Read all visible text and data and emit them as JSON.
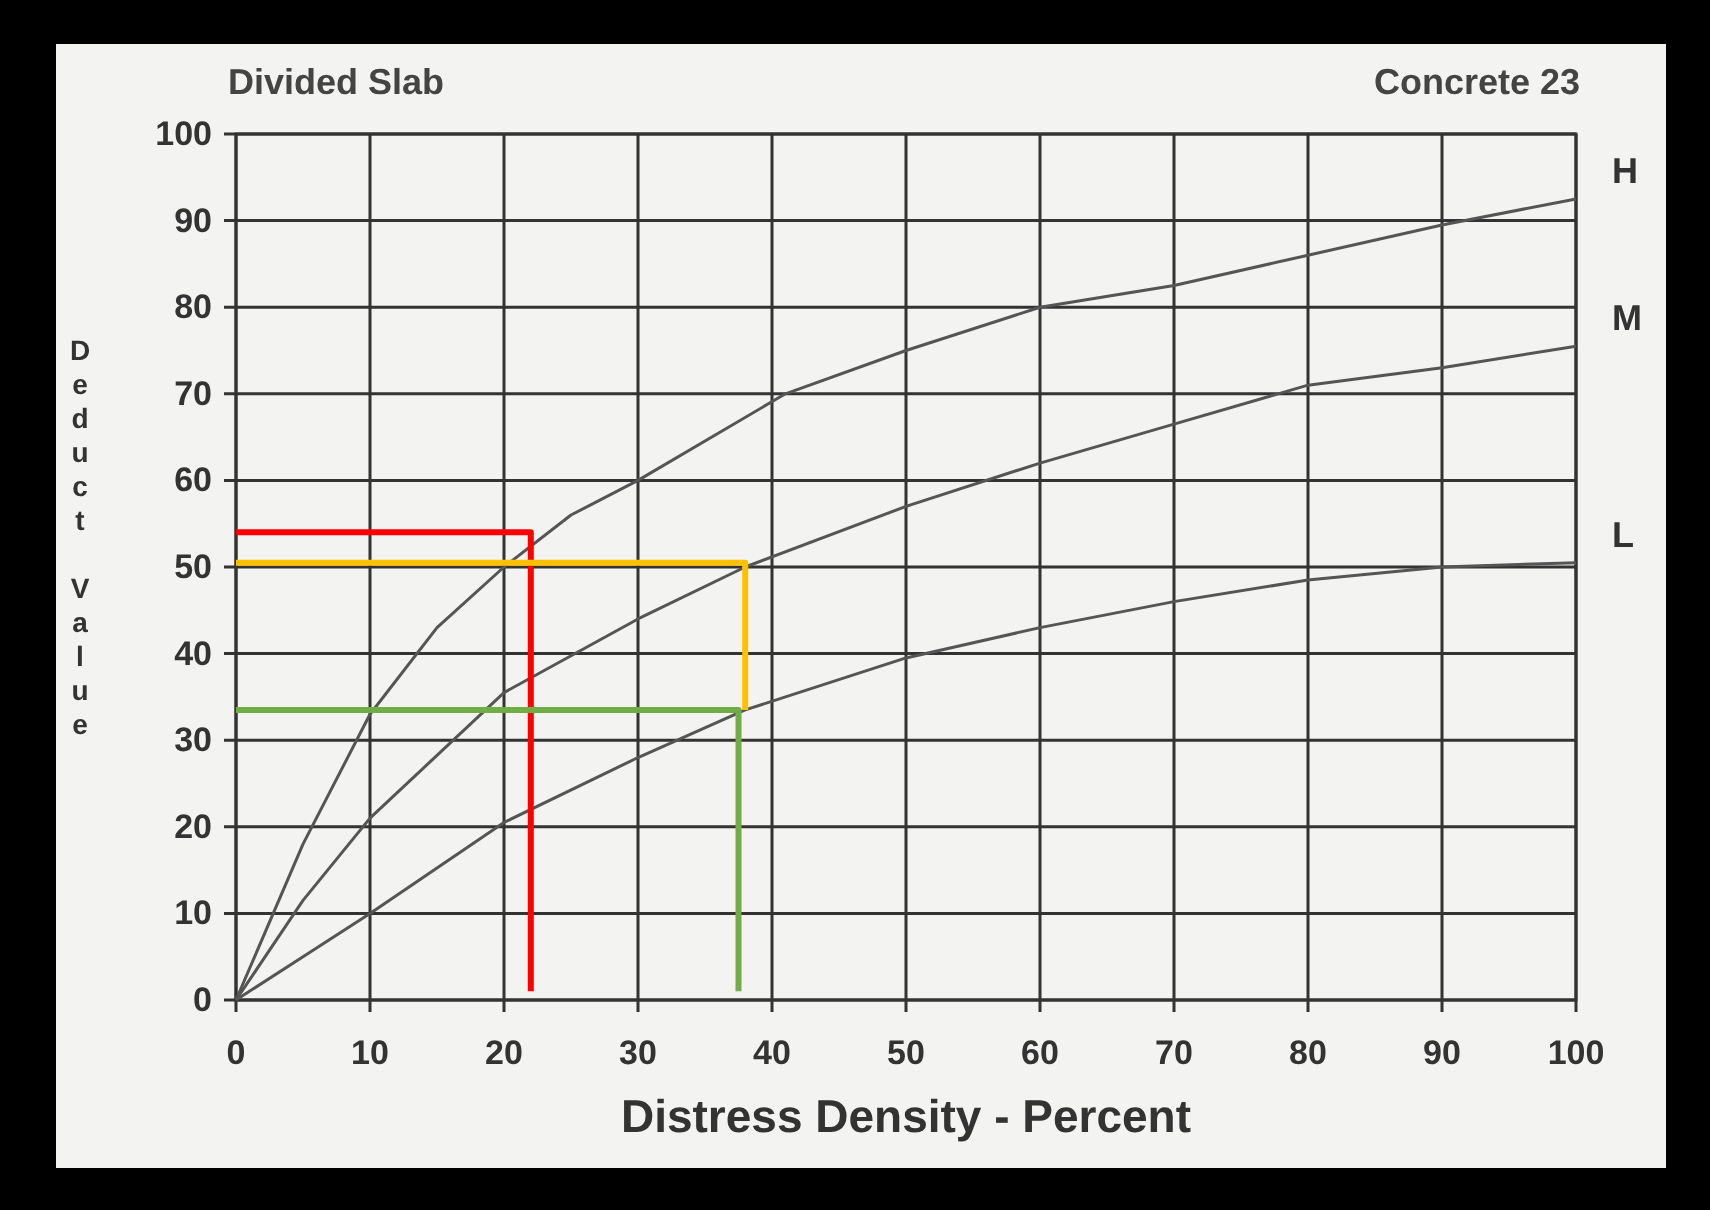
{
  "chart_data": {
    "type": "line",
    "title": "Divided Slab",
    "subtitle": "Concrete 23",
    "xlabel": "Distress Density - Percent",
    "ylabel": "Deduct Value",
    "xlim": [
      0,
      100
    ],
    "ylim": [
      0,
      100
    ],
    "xticks": [
      0,
      10,
      20,
      30,
      40,
      50,
      60,
      70,
      80,
      90,
      100
    ],
    "yticks": [
      0,
      10,
      20,
      30,
      40,
      50,
      60,
      70,
      80,
      90,
      100
    ],
    "grid": true,
    "legend": false,
    "marker": "none",
    "line_style": "solid",
    "series": [
      {
        "name": "H",
        "color": "#555555",
        "x": [
          0,
          5,
          10,
          15,
          20,
          25,
          30,
          41,
          50,
          60,
          70,
          80,
          90,
          100
        ],
        "values": [
          0,
          18,
          33,
          43,
          50,
          56,
          60,
          70,
          75,
          80,
          82.5,
          86,
          89.5,
          92.5
        ]
      },
      {
        "name": "M",
        "color": "#555555",
        "x": [
          0,
          5,
          10,
          20,
          30,
          38,
          50,
          60,
          70,
          80,
          90,
          100
        ],
        "values": [
          0,
          11.5,
          21,
          35.5,
          44,
          50,
          57,
          62,
          66.5,
          71,
          73,
          75.5
        ]
      },
      {
        "name": "L",
        "color": "#555555",
        "x": [
          0,
          5,
          10,
          20,
          30,
          38,
          50,
          60,
          70,
          80,
          90,
          100
        ],
        "values": [
          0,
          5,
          10,
          20.5,
          28,
          33.5,
          39.5,
          43,
          46,
          48.5,
          50,
          50.5
        ]
      },
      {
        "color": "#ff0000",
        "x": [
          0,
          22,
          22
        ],
        "values": [
          54,
          54,
          1
        ]
      },
      {
        "color": "#ffc000",
        "x": [
          0,
          38,
          38
        ],
        "values": [
          50.5,
          50.5,
          33.5
        ]
      },
      {
        "color": "#70ad47",
        "x": [
          0,
          37.5,
          37.5
        ],
        "values": [
          33.5,
          33.5,
          1
        ]
      }
    ]
  }
}
